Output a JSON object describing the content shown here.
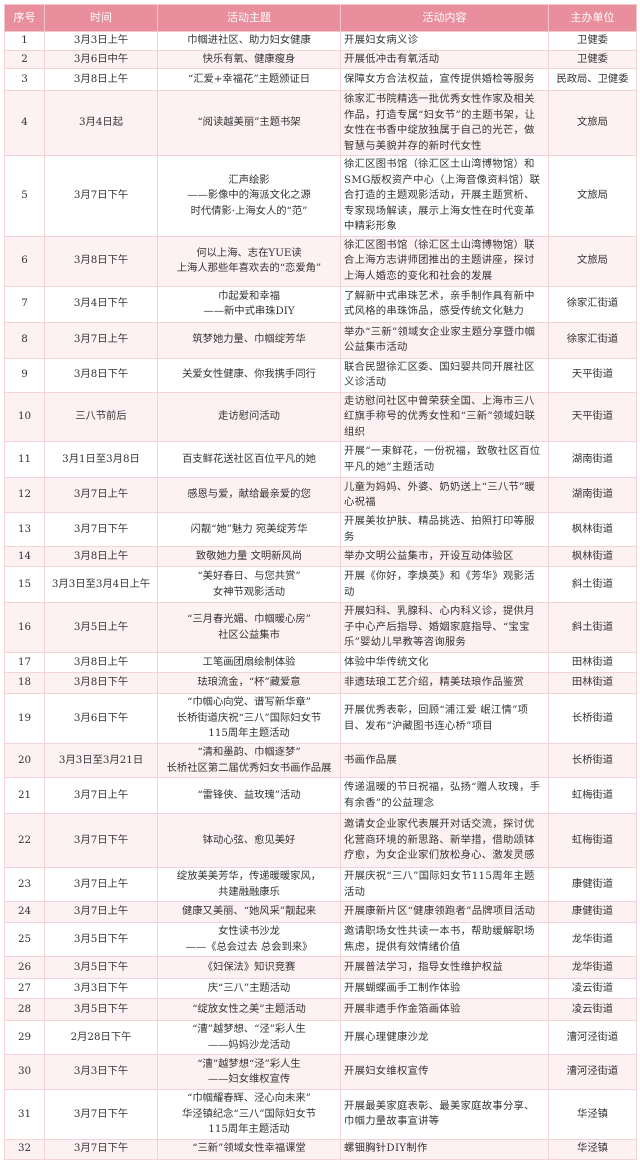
{
  "headers": [
    "序号",
    "时间",
    "活动主题",
    "活动内容",
    "主办单位"
  ],
  "colors": {
    "header_bg": "#e88e9c",
    "row_alt": "#fdf1f3"
  },
  "rows": [
    {
      "no": "1",
      "time": "3月3日上午",
      "theme": "巾帼进社区、助力妇女健康",
      "content": "开展妇女病义诊",
      "org": "卫健委"
    },
    {
      "no": "2",
      "time": "3月6日中午",
      "theme": "快乐有氧、健康瘦身",
      "content": "开展低冲击有氧活动",
      "org": "卫健委"
    },
    {
      "no": "3",
      "time": "3月8日上午",
      "theme": "“汇爱+幸福花”主题颁证日",
      "content": "保障女方合法权益，宣传提供婚检等服务",
      "org": "民政局、卫健委"
    },
    {
      "no": "4",
      "time": "3月4日起",
      "theme": "“阅读越美丽”主题书架",
      "content": "徐家汇书院精选一批优秀女性作家及相关作品，打造专属“妇女节”的主题书架，让女性在书香中绽放独属于自己的光芒，做智慧与美貌并存的新时代女性",
      "org": "文旅局"
    },
    {
      "no": "5",
      "time": "3月7日下午",
      "theme": "汇声绘影\n——影像中的海派文化之源\n时代倩影·上海女人的“范”",
      "content": "徐汇区图书馆（徐汇区土山湾博物馆）和SMG版权资产中心（上海音像资料馆）联合打造的主题观影活动，开展主题赏析、专家现场解读，展示上海女性在时代变革中精彩形象",
      "org": "文旅局"
    },
    {
      "no": "6",
      "time": "3月8日下午",
      "theme": "何以上海、志在YUE读\n上海人那些年喜欢去的“恋爱角”",
      "content": "徐汇区图书馆（徐汇区土山湾博物馆）联合上海方志讲师团推出的主题讲座，探讨上海人婚恋的变化和社会的发展",
      "org": "文旅局"
    },
    {
      "no": "7",
      "time": "3月4日下午",
      "theme": "巾起爱和幸福\n——新中式串珠DIY",
      "content": "了解新中式串珠艺术，亲手制作具有新中式风格的串珠饰品，感受传统文化魅力",
      "org": "徐家汇街道"
    },
    {
      "no": "8",
      "time": "3月7日上午",
      "theme": "筑梦她力量、巾帼绽芳华",
      "content": "举办“三新”领域女企业家主题分享暨巾帼公益集市活动",
      "org": "徐家汇街道"
    },
    {
      "no": "9",
      "time": "3月8日下午",
      "theme": "关爱女性健康、你我携手同行",
      "content": "联合民盟徐汇区委、国妇婴共同开展社区义诊活动",
      "org": "天平街道"
    },
    {
      "no": "10",
      "time": "三八节前后",
      "theme": "走访慰问活动",
      "content": "走访慰问社区中曾荣获全国、上海市三八红旗手称号的优秀女性和“三新”领域妇联组织",
      "org": "天平街道"
    },
    {
      "no": "11",
      "time": "3月1日至3月8日",
      "theme": "百支鲜花送社区百位平凡的她",
      "content": "开展“一束鲜花，一份祝福，致敬社区百位平凡的她”主题活动",
      "org": "湖南街道"
    },
    {
      "no": "12",
      "time": "3月7日上午",
      "theme": "感恩与爱，献给最亲爱的您",
      "content": "儿童为妈妈、外婆、奶奶送上“三八节”暖心祝福",
      "org": "湖南街道"
    },
    {
      "no": "13",
      "time": "3月7日下午",
      "theme": "闪靓“她”魅力 宛美绽芳华",
      "content": "开展美妆护肤、精品挑选、拍照打印等服务",
      "org": "枫林街道"
    },
    {
      "no": "14",
      "time": "3月8日上午",
      "theme": "致敬她力量 文明新风尚",
      "content": "举办文明公益集市，开设互动体验区",
      "org": "枫林街道"
    },
    {
      "no": "15",
      "time": "3月3日至3月4日上午",
      "theme": "“美好春日、与您共赏”\n女神节观影活动",
      "content": "开展《你好，李焕英》和《芳华》观影活动",
      "org": "斜土街道"
    },
    {
      "no": "16",
      "time": "3月5日上午",
      "theme": "“三月春光媚、巾帼暖心房”\n社区公益集市",
      "content": "开展妇科、乳腺科、心内科义诊，提供月子中心产后指导、婚姻家庭指导、“宝宝乐”婴幼儿早教等咨询服务",
      "org": "斜土街道"
    },
    {
      "no": "17",
      "time": "3月8日上午",
      "theme": "工笔画团扇绘制体验",
      "content": "体验中华传统文化",
      "org": "田林街道"
    },
    {
      "no": "18",
      "time": "3月8日下午",
      "theme": "珐琅流金，“杯”藏爱意",
      "content": "非遗珐琅工艺介绍，精美珐琅作品鉴赏",
      "org": "田林街道"
    },
    {
      "no": "19",
      "time": "3月6日下午",
      "theme": "“巾帼心向党、谱写新华章”\n长桥街道庆祝“三八”国际妇女节\n115周年主题活动",
      "content": "开展优秀表彰，回顾“浦江爱 岷江情”项目、发布“沪藏图书连心桥”项目",
      "org": "长桥街道"
    },
    {
      "no": "20",
      "time": "3月3日至3月21日",
      "theme": "“清和墨韵、巾帼逐梦”\n长桥社区第二届优秀妇女书画作品展",
      "content": "书画作品展",
      "org": "长桥街道"
    },
    {
      "no": "21",
      "time": "3月7日上午",
      "theme": "“雷锋侠、益玫瑰”活动",
      "content": "传递温暖的节日祝福，弘扬“赠人玫瑰，手有余香”的公益理念",
      "org": "虹梅街道"
    },
    {
      "no": "22",
      "time": "3月7日下午",
      "theme": "钵动心弦、愈见美好",
      "content": "邀请女企业家代表展开对话交流，探讨优化营商环境的新思路、新举措，借助颂钵疗愈，为女企业家们放松身心、激发灵感",
      "org": "虹梅街道"
    },
    {
      "no": "23",
      "time": "3月7日上午",
      "theme": "绽放美美芳华，传递暖暖家风，\n共建融融康乐",
      "content": "开展庆祝“三八”国际妇女节115周年主题活动",
      "org": "康健街道"
    },
    {
      "no": "24",
      "time": "3月7日上午",
      "theme": "健康又美丽、“她风采”靓起来",
      "content": "开展康新片区“健康领跑者”品牌项目活动",
      "org": "康健街道"
    },
    {
      "no": "25",
      "time": "3月5日下午",
      "theme": "女性读书沙龙\n——《总会过去 总会到来》",
      "content": "邀请职场女性共读一本书，帮助缓解职场焦虑，提供有效情绪价值",
      "org": "龙华街道"
    },
    {
      "no": "26",
      "time": "3月5日下午",
      "theme": "《妇保法》知识竞赛",
      "content": "开展普法学习，指导女性维护权益",
      "org": "龙华街道"
    },
    {
      "no": "27",
      "time": "3月3日下午",
      "theme": "庆“三八”主题活动",
      "content": "开展蝴蝶画手工制作体验",
      "org": "凌云街道"
    },
    {
      "no": "28",
      "time": "3月5日下午",
      "theme": "“绽放女性之美”主题活动",
      "content": "开展非遗手作金箔画体验",
      "org": "凌云街道"
    },
    {
      "no": "29",
      "time": "2月28日下午",
      "theme": "“漕”越梦想、“泾”彩人生\n——妈妈沙龙活动",
      "content": "开展心理健康沙龙",
      "org": "漕河泾街道"
    },
    {
      "no": "30",
      "time": "3月3日下午",
      "theme": "“漕”越梦想“泾”彩人生\n——妇女维权宣传",
      "content": "开展妇女维权宣传",
      "org": "漕河泾街道"
    },
    {
      "no": "31",
      "time": "3月7日下午",
      "theme": "“巾帼耀春辉、泾心向未来”\n华泾镇纪念“三八”国际妇女节\n115周年主题活动",
      "content": "开展最美家庭表彰、最美家庭故事分享、巾帼力量故事宣讲等",
      "org": "华泾镇"
    },
    {
      "no": "32",
      "time": "3月7日下午",
      "theme": "“三新”领域女性幸福课堂",
      "content": "螺钿胸针DIY制作",
      "org": "华泾镇"
    }
  ]
}
